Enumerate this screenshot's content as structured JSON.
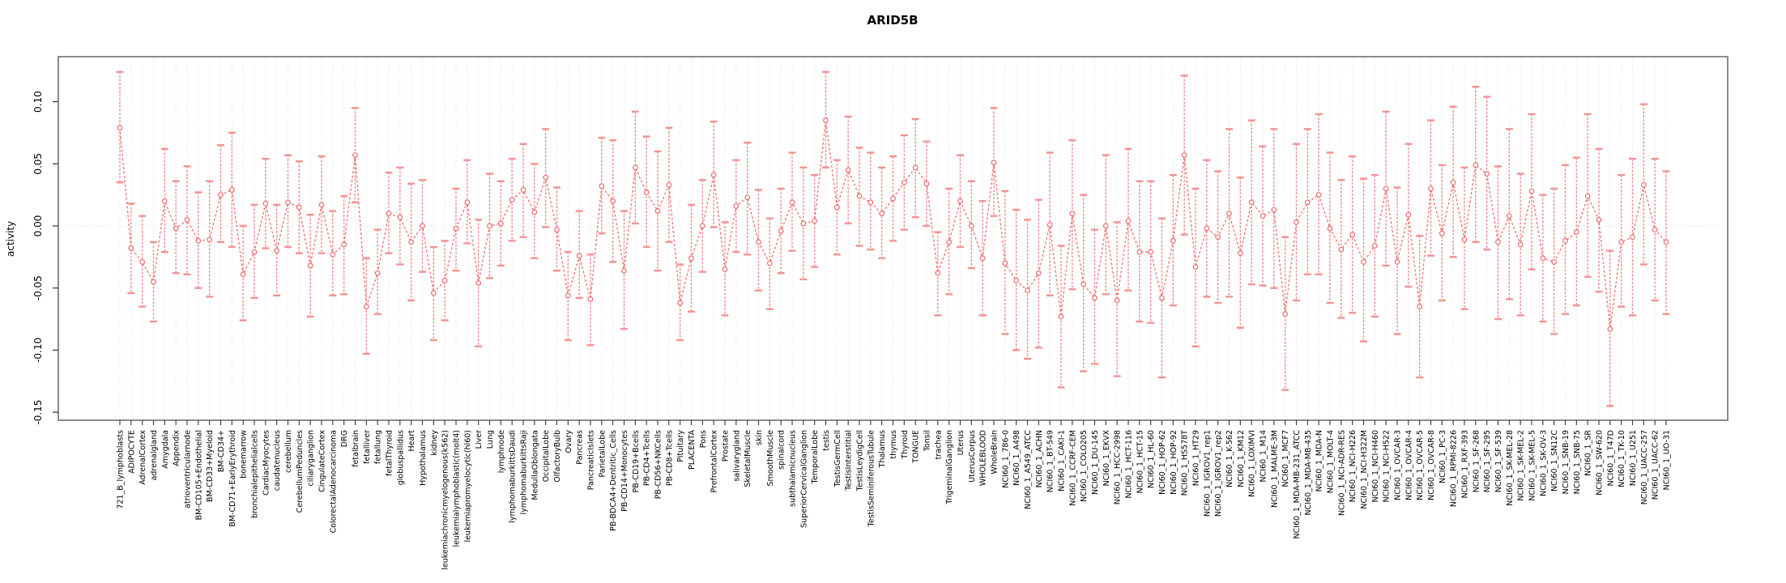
{
  "chart_data": {
    "type": "line",
    "title": "ARID5B",
    "ylabel": "activity",
    "xlabel": "",
    "legend": "none",
    "grid": "vertical-dashed-per-category, dotted-zero-line",
    "ylim": [
      -0.156,
      0.136
    ],
    "yticks": [
      {
        "label": "0.10",
        "v": 0.1
      },
      {
        "label": "0.05",
        "v": 0.05
      },
      {
        "label": "0.00",
        "v": 0.0
      },
      {
        "label": "-0.05",
        "v": -0.05
      },
      {
        "label": "-0.10",
        "v": -0.1
      },
      {
        "label": "-0.15",
        "v": -0.15
      }
    ],
    "colors": {
      "series": "#f06060",
      "errorbar": "#ee6b6b",
      "cap": "#f49292",
      "grid": "#e3e3e3",
      "zeroline": "#d9d9d9",
      "box": "#8c8c8c",
      "tick": "#333333"
    },
    "points": [
      {
        "label": "721_B_lymphoblasts",
        "v": 0.079,
        "lo": 0.035,
        "hi": 0.124
      },
      {
        "label": "ADIPOCYTE",
        "v": -0.018,
        "lo": -0.054,
        "hi": 0.018
      },
      {
        "label": "AdrenalCortex",
        "v": -0.029,
        "lo": -0.065,
        "hi": 0.008
      },
      {
        "label": "adrenalgland",
        "v": -0.045,
        "lo": -0.077,
        "hi": -0.013
      },
      {
        "label": "Amygdala",
        "v": 0.02,
        "lo": -0.021,
        "hi": 0.062
      },
      {
        "label": "Appendix",
        "v": -0.002,
        "lo": -0.038,
        "hi": 0.036
      },
      {
        "label": "atrioventricularnode",
        "v": 0.005,
        "lo": -0.039,
        "hi": 0.048
      },
      {
        "label": "BM-CD105+Endothelial",
        "v": -0.012,
        "lo": -0.05,
        "hi": 0.027
      },
      {
        "label": "BM-CD33+Myeloid",
        "v": -0.011,
        "lo": -0.057,
        "hi": 0.036
      },
      {
        "label": "BM-CD34+",
        "v": 0.025,
        "lo": -0.013,
        "hi": 0.065
      },
      {
        "label": "BM-CD71+EarlyErythroid",
        "v": 0.029,
        "lo": -0.017,
        "hi": 0.075
      },
      {
        "label": "bonemarrow",
        "v": -0.039,
        "lo": -0.076,
        "hi": 0.0
      },
      {
        "label": "bronchialepithelialcells",
        "v": -0.021,
        "lo": -0.058,
        "hi": 0.017
      },
      {
        "label": "CardiacMyocytes",
        "v": 0.018,
        "lo": -0.018,
        "hi": 0.054
      },
      {
        "label": "caudatenucleus",
        "v": -0.02,
        "lo": -0.056,
        "hi": 0.017
      },
      {
        "label": "cerebellum",
        "v": 0.019,
        "lo": -0.017,
        "hi": 0.057
      },
      {
        "label": "CerebellumPeduncles",
        "v": 0.015,
        "lo": -0.022,
        "hi": 0.052
      },
      {
        "label": "ciliaryganglion",
        "v": -0.032,
        "lo": -0.073,
        "hi": 0.009
      },
      {
        "label": "CingulateCortex",
        "v": 0.017,
        "lo": -0.022,
        "hi": 0.056
      },
      {
        "label": "ColorectalAdenocarcinoma",
        "v": -0.023,
        "lo": -0.056,
        "hi": 0.012
      },
      {
        "label": "DRG",
        "v": -0.015,
        "lo": -0.055,
        "hi": 0.024
      },
      {
        "label": "fetalbrain",
        "v": 0.057,
        "lo": 0.019,
        "hi": 0.095
      },
      {
        "label": "fetalliver",
        "v": -0.065,
        "lo": -0.103,
        "hi": -0.026
      },
      {
        "label": "fetallung",
        "v": -0.038,
        "lo": -0.071,
        "hi": -0.003
      },
      {
        "label": "fetalThyroid",
        "v": 0.01,
        "lo": -0.022,
        "hi": 0.043
      },
      {
        "label": "globuspallidus",
        "v": 0.007,
        "lo": -0.031,
        "hi": 0.047
      },
      {
        "label": "Heart",
        "v": -0.013,
        "lo": -0.06,
        "hi": 0.034
      },
      {
        "label": "Hypothalamus",
        "v": 0.0,
        "lo": -0.037,
        "hi": 0.037
      },
      {
        "label": "kidney",
        "v": -0.054,
        "lo": -0.092,
        "hi": -0.017
      },
      {
        "label": "leukemiachronicmyelogenous(k562)",
        "v": -0.044,
        "lo": -0.076,
        "hi": -0.012
      },
      {
        "label": "leukemialymphoblastic(molt4)",
        "v": -0.002,
        "lo": -0.036,
        "hi": 0.03
      },
      {
        "label": "leukemiapromyelocytic(hl60)",
        "v": 0.019,
        "lo": -0.014,
        "hi": 0.053
      },
      {
        "label": "Liver",
        "v": -0.046,
        "lo": -0.097,
        "hi": 0.005
      },
      {
        "label": "Lung",
        "v": 0.0,
        "lo": -0.042,
        "hi": 0.042
      },
      {
        "label": "lymphnode",
        "v": 0.002,
        "lo": -0.032,
        "hi": 0.036
      },
      {
        "label": "lymphomaburkittsDaudi",
        "v": 0.021,
        "lo": -0.012,
        "hi": 0.054
      },
      {
        "label": "lymphomaburkittsRaji",
        "v": 0.029,
        "lo": -0.009,
        "hi": 0.066
      },
      {
        "label": "MedullaOblongata",
        "v": 0.011,
        "lo": -0.026,
        "hi": 0.05
      },
      {
        "label": "OccipitalLobe",
        "v": 0.039,
        "lo": -0.001,
        "hi": 0.078
      },
      {
        "label": "OlfactoryBulb",
        "v": -0.003,
        "lo": -0.036,
        "hi": 0.031
      },
      {
        "label": "Ovary",
        "v": -0.056,
        "lo": -0.092,
        "hi": -0.021
      },
      {
        "label": "Pancreas",
        "v": -0.024,
        "lo": -0.058,
        "hi": 0.012
      },
      {
        "label": "PancreaticIslets",
        "v": -0.059,
        "lo": -0.096,
        "hi": -0.023
      },
      {
        "label": "ParietalLobe",
        "v": 0.032,
        "lo": -0.006,
        "hi": 0.071
      },
      {
        "label": "PB-BDCA4+Dentritic_Cells",
        "v": 0.02,
        "lo": -0.029,
        "hi": 0.069
      },
      {
        "label": "PB-CD14+Monocytes",
        "v": -0.036,
        "lo": -0.083,
        "hi": 0.012
      },
      {
        "label": "PB-CD19+Bcells",
        "v": 0.047,
        "lo": 0.002,
        "hi": 0.092
      },
      {
        "label": "PB-CD4+Tcells",
        "v": 0.027,
        "lo": -0.017,
        "hi": 0.072
      },
      {
        "label": "PB-CD56+NKCells",
        "v": 0.012,
        "lo": -0.036,
        "hi": 0.06
      },
      {
        "label": "PB-CD8+Tcells",
        "v": 0.033,
        "lo": -0.013,
        "hi": 0.079
      },
      {
        "label": "Pituitary",
        "v": -0.062,
        "lo": -0.092,
        "hi": -0.031
      },
      {
        "label": "PLACENTA",
        "v": -0.026,
        "lo": -0.069,
        "hi": 0.017
      },
      {
        "label": "Pons",
        "v": 0.0,
        "lo": -0.037,
        "hi": 0.037
      },
      {
        "label": "PrefrontalCortex",
        "v": 0.041,
        "lo": -0.001,
        "hi": 0.084
      },
      {
        "label": "Prostate",
        "v": -0.035,
        "lo": -0.072,
        "hi": 0.003
      },
      {
        "label": "salivarygland",
        "v": 0.016,
        "lo": -0.021,
        "hi": 0.053
      },
      {
        "label": "SkeletalMuscle",
        "v": 0.023,
        "lo": -0.023,
        "hi": 0.067
      },
      {
        "label": "skin",
        "v": -0.013,
        "lo": -0.052,
        "hi": 0.029
      },
      {
        "label": "SmoothMuscle",
        "v": -0.03,
        "lo": -0.067,
        "hi": 0.006
      },
      {
        "label": "spinalcord",
        "v": -0.004,
        "lo": -0.038,
        "hi": 0.03
      },
      {
        "label": "subthalamicnucleus",
        "v": 0.019,
        "lo": -0.02,
        "hi": 0.059
      },
      {
        "label": "SuperiorCervicalGanglion",
        "v": 0.002,
        "lo": -0.043,
        "hi": 0.047
      },
      {
        "label": "TemporalLobe",
        "v": 0.004,
        "lo": -0.033,
        "hi": 0.041
      },
      {
        "label": "testis",
        "v": 0.085,
        "lo": 0.047,
        "hi": 0.124
      },
      {
        "label": "TestisGermCell",
        "v": 0.015,
        "lo": -0.023,
        "hi": 0.053
      },
      {
        "label": "TestisInterstitial",
        "v": 0.045,
        "lo": 0.002,
        "hi": 0.088
      },
      {
        "label": "TestisLeydigCell",
        "v": 0.024,
        "lo": -0.016,
        "hi": 0.063
      },
      {
        "label": "TestisSeminiferousTubule",
        "v": 0.019,
        "lo": -0.019,
        "hi": 0.059
      },
      {
        "label": "Thalamus",
        "v": 0.01,
        "lo": -0.026,
        "hi": 0.047
      },
      {
        "label": "thymus",
        "v": 0.022,
        "lo": -0.012,
        "hi": 0.056
      },
      {
        "label": "Thyroid",
        "v": 0.035,
        "lo": -0.003,
        "hi": 0.073
      },
      {
        "label": "TONGUE",
        "v": 0.047,
        "lo": 0.007,
        "hi": 0.086
      },
      {
        "label": "Tonsil",
        "v": 0.034,
        "lo": 0.0,
        "hi": 0.068
      },
      {
        "label": "trachea",
        "v": -0.038,
        "lo": -0.072,
        "hi": -0.005
      },
      {
        "label": "TrigeminalGanglion",
        "v": -0.013,
        "lo": -0.055,
        "hi": 0.03
      },
      {
        "label": "Uterus",
        "v": 0.02,
        "lo": -0.017,
        "hi": 0.057
      },
      {
        "label": "UterusCorpus",
        "v": 0.0,
        "lo": -0.034,
        "hi": 0.036
      },
      {
        "label": "WHOLEBLOOD",
        "v": -0.026,
        "lo": -0.072,
        "hi": 0.02
      },
      {
        "label": "WholeBrain",
        "v": 0.051,
        "lo": 0.008,
        "hi": 0.095
      },
      {
        "label": "NCI60_1_786-0",
        "v": -0.03,
        "lo": -0.087,
        "hi": 0.028
      },
      {
        "label": "NCI60_1_A498",
        "v": -0.044,
        "lo": -0.1,
        "hi": 0.013
      },
      {
        "label": "NCI60_1_A549_ATCC",
        "v": -0.052,
        "lo": -0.107,
        "hi": 0.005
      },
      {
        "label": "NCI60_1_ACHN",
        "v": -0.038,
        "lo": -0.098,
        "hi": 0.021
      },
      {
        "label": "NCI60_1_BT-549",
        "v": 0.001,
        "lo": -0.056,
        "hi": 0.059
      },
      {
        "label": "NCI60_1_CAKI-1",
        "v": -0.073,
        "lo": -0.13,
        "hi": -0.016
      },
      {
        "label": "NCI60_1_CCRF-CEM",
        "v": 0.01,
        "lo": -0.051,
        "hi": 0.069
      },
      {
        "label": "NCI60_1_COLO205",
        "v": -0.047,
        "lo": -0.117,
        "hi": 0.025
      },
      {
        "label": "NCI60_1_DU-145",
        "v": -0.058,
        "lo": -0.111,
        "hi": -0.003
      },
      {
        "label": "NCI60_1_EKVX",
        "v": 0.0,
        "lo": -0.055,
        "hi": 0.057
      },
      {
        "label": "NCI60_1_HCC-2998",
        "v": -0.06,
        "lo": -0.121,
        "hi": 0.003
      },
      {
        "label": "NCI60_1_HCT-116",
        "v": 0.004,
        "lo": -0.052,
        "hi": 0.062
      },
      {
        "label": "NCI60_1_HCT-15",
        "v": -0.021,
        "lo": -0.077,
        "hi": 0.036
      },
      {
        "label": "NCI60_1_HL-60",
        "v": -0.021,
        "lo": -0.078,
        "hi": 0.036
      },
      {
        "label": "NCI60_1_HOP-62",
        "v": -0.058,
        "lo": -0.122,
        "hi": 0.006
      },
      {
        "label": "NCI60_1_HOP-92",
        "v": -0.012,
        "lo": -0.064,
        "hi": 0.041
      },
      {
        "label": "NCI60_1_HS578T",
        "v": 0.057,
        "lo": -0.007,
        "hi": 0.121
      },
      {
        "label": "NCI60_1_HT29",
        "v": -0.033,
        "lo": -0.097,
        "hi": 0.03
      },
      {
        "label": "NCI60_1_IGROV1_rep1",
        "v": -0.002,
        "lo": -0.057,
        "hi": 0.053
      },
      {
        "label": "NCI60_1_IGROV1_rep2",
        "v": -0.009,
        "lo": -0.062,
        "hi": 0.044
      },
      {
        "label": "NCI60_1_K-562",
        "v": 0.01,
        "lo": -0.057,
        "hi": 0.078
      },
      {
        "label": "NCI60_1_KM12",
        "v": -0.022,
        "lo": -0.082,
        "hi": 0.039
      },
      {
        "label": "NCI60_1_LOXIMVI",
        "v": 0.019,
        "lo": -0.047,
        "hi": 0.085
      },
      {
        "label": "NCI60_1_M14",
        "v": 0.008,
        "lo": -0.048,
        "hi": 0.064
      },
      {
        "label": "NCI60_1_MALME-3M",
        "v": 0.013,
        "lo": -0.05,
        "hi": 0.078
      },
      {
        "label": "NCI60_1_MCF7",
        "v": -0.071,
        "lo": -0.132,
        "hi": -0.009
      },
      {
        "label": "NCI60_1_MDA-MB-231_ATCC",
        "v": 0.003,
        "lo": -0.06,
        "hi": 0.066
      },
      {
        "label": "NCI60_1_MDA-MB-435",
        "v": 0.019,
        "lo": -0.039,
        "hi": 0.078
      },
      {
        "label": "NCI60_1_MDA-N",
        "v": 0.025,
        "lo": -0.039,
        "hi": 0.09
      },
      {
        "label": "NCI60_1_MOLT-4",
        "v": -0.002,
        "lo": -0.062,
        "hi": 0.059
      },
      {
        "label": "NCI60_1_NCI-ADR-RES",
        "v": -0.019,
        "lo": -0.074,
        "hi": 0.037
      },
      {
        "label": "NCI60_1_NCI-H226",
        "v": -0.007,
        "lo": -0.07,
        "hi": 0.056
      },
      {
        "label": "NCI60_1_NCI-H322M",
        "v": -0.029,
        "lo": -0.093,
        "hi": 0.038
      },
      {
        "label": "NCI60_1_NCI-H460",
        "v": -0.016,
        "lo": -0.073,
        "hi": 0.041
      },
      {
        "label": "NCI60_1_NCI-H522",
        "v": 0.03,
        "lo": -0.032,
        "hi": 0.092
      },
      {
        "label": "NCI60_1_OVCAR-3",
        "v": -0.029,
        "lo": -0.087,
        "hi": 0.031
      },
      {
        "label": "NCI60_1_OVCAR-4",
        "v": 0.009,
        "lo": -0.049,
        "hi": 0.066
      },
      {
        "label": "NCI60_1_OVCAR-5",
        "v": -0.065,
        "lo": -0.122,
        "hi": -0.008
      },
      {
        "label": "NCI60_1_OVCAR-8",
        "v": 0.03,
        "lo": -0.024,
        "hi": 0.085
      },
      {
        "label": "NCI60_1_PC-3",
        "v": -0.006,
        "lo": -0.06,
        "hi": 0.049
      },
      {
        "label": "NCI60_1_RPMI-8226",
        "v": 0.035,
        "lo": -0.025,
        "hi": 0.096
      },
      {
        "label": "NCI60_1_RXF-393",
        "v": -0.011,
        "lo": -0.067,
        "hi": 0.047
      },
      {
        "label": "NCI60_1_SF-268",
        "v": 0.049,
        "lo": -0.013,
        "hi": 0.112
      },
      {
        "label": "NCI60_1_SF-295",
        "v": 0.042,
        "lo": -0.019,
        "hi": 0.104
      },
      {
        "label": "NCI60_1_SF-539",
        "v": -0.013,
        "lo": -0.075,
        "hi": 0.048
      },
      {
        "label": "NCI60_1_SK-MEL-28",
        "v": 0.008,
        "lo": -0.059,
        "hi": 0.078
      },
      {
        "label": "NCI60_1_SK-MEL-2",
        "v": -0.015,
        "lo": -0.072,
        "hi": 0.042
      },
      {
        "label": "NCI60_1_SK-MEL-5",
        "v": 0.028,
        "lo": -0.035,
        "hi": 0.09
      },
      {
        "label": "NCI60_1_SK-OV-3",
        "v": -0.026,
        "lo": -0.077,
        "hi": 0.025
      },
      {
        "label": "NCI60_1_SN12C",
        "v": -0.029,
        "lo": -0.087,
        "hi": 0.03
      },
      {
        "label": "NCI60_1_SNB-19",
        "v": -0.012,
        "lo": -0.071,
        "hi": 0.049
      },
      {
        "label": "NCI60_1_SNB-75",
        "v": -0.005,
        "lo": -0.064,
        "hi": 0.055
      },
      {
        "label": "NCI60_1_SR",
        "v": 0.024,
        "lo": -0.041,
        "hi": 0.09
      },
      {
        "label": "NCI60_1_SW-620",
        "v": 0.005,
        "lo": -0.053,
        "hi": 0.062
      },
      {
        "label": "NCI60_1_T47D",
        "v": -0.083,
        "lo": -0.145,
        "hi": -0.02
      },
      {
        "label": "NCI60_1_TK-10",
        "v": -0.013,
        "lo": -0.065,
        "hi": 0.041
      },
      {
        "label": "NCI60_1_U251",
        "v": -0.009,
        "lo": -0.072,
        "hi": 0.054
      },
      {
        "label": "NCI60_1_UACC-257",
        "v": 0.033,
        "lo": -0.031,
        "hi": 0.098
      },
      {
        "label": "NCI60_1_UACC-62",
        "v": -0.003,
        "lo": -0.06,
        "hi": 0.054
      },
      {
        "label": "NCI60_1_UO-31",
        "v": -0.013,
        "lo": -0.071,
        "hi": 0.044
      }
    ]
  }
}
